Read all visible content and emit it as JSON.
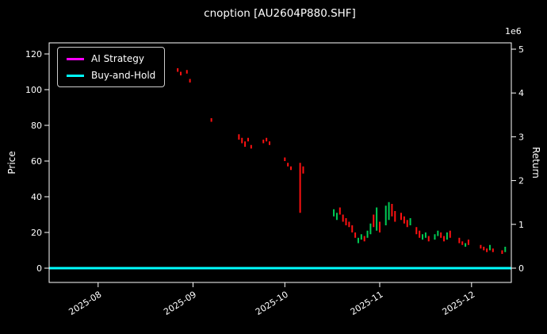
{
  "chart_data": {
    "type": "candlestick",
    "title": "cnoption [AU2604P880.SHF]",
    "background_color": "#000000",
    "left_axis": {
      "label": "Price",
      "ticks": [
        0,
        20,
        40,
        60,
        80,
        100,
        120
      ],
      "lim": [
        -8,
        126
      ]
    },
    "right_axis": {
      "label": "Return",
      "ticks": [
        0,
        1,
        2,
        3,
        4,
        5
      ],
      "scale": "1e6",
      "lim": [
        -0.35,
        5.15
      ]
    },
    "x_axis": {
      "day0": "2025-07-16",
      "max_day": 151,
      "ticks": [
        {
          "label": "2025-08",
          "day": 16
        },
        {
          "label": "2025-09",
          "day": 47
        },
        {
          "label": "2025-10",
          "day": 77
        },
        {
          "label": "2025-11",
          "day": 108
        },
        {
          "label": "2025-12",
          "day": 138
        }
      ]
    },
    "lines": [
      {
        "name": "AI Strategy",
        "color": "#ff00ff",
        "value": 0,
        "axis": "return"
      },
      {
        "name": "Buy-and-Hold",
        "color": "#00ffff",
        "value": 0,
        "axis": "return"
      }
    ],
    "bars": {
      "up_color": "#00cc55",
      "down_color": "#ff1111",
      "note": "points are [day, price_low, price_high, direction u=up/green d=down/red]",
      "points": [
        [
          42,
          110,
          112,
          "d"
        ],
        [
          43,
          108,
          110,
          "d"
        ],
        [
          45,
          109,
          111,
          "d"
        ],
        [
          46,
          104,
          106,
          "d"
        ],
        [
          53,
          82,
          84,
          "d"
        ],
        [
          62,
          72,
          75,
          "d"
        ],
        [
          63,
          70,
          73,
          "d"
        ],
        [
          64,
          68,
          71,
          "d"
        ],
        [
          65,
          71,
          73,
          "d"
        ],
        [
          66,
          67,
          69,
          "d"
        ],
        [
          70,
          70,
          72,
          "d"
        ],
        [
          71,
          71,
          73,
          "d"
        ],
        [
          72,
          69,
          71,
          "d"
        ],
        [
          77,
          60,
          62,
          "d"
        ],
        [
          78,
          57,
          59,
          "d"
        ],
        [
          79,
          55,
          57,
          "d"
        ],
        [
          82,
          31,
          59,
          "d"
        ],
        [
          83,
          53,
          57,
          "d"
        ],
        [
          93,
          29,
          33,
          "u"
        ],
        [
          94,
          27,
          31,
          "u"
        ],
        [
          95,
          30,
          34,
          "d"
        ],
        [
          96,
          26,
          30,
          "d"
        ],
        [
          97,
          24,
          28,
          "d"
        ],
        [
          98,
          23,
          26,
          "d"
        ],
        [
          99,
          20,
          24,
          "d"
        ],
        [
          100,
          17,
          20,
          "d"
        ],
        [
          101,
          14,
          17,
          "u"
        ],
        [
          102,
          16,
          19,
          "u"
        ],
        [
          103,
          15,
          18,
          "d"
        ],
        [
          104,
          17,
          21,
          "u"
        ],
        [
          105,
          19,
          25,
          "u"
        ],
        [
          106,
          23,
          30,
          "d"
        ],
        [
          107,
          21,
          34,
          "u"
        ],
        [
          108,
          20,
          26,
          "d"
        ],
        [
          110,
          24,
          35,
          "u"
        ],
        [
          111,
          27,
          37,
          "u"
        ],
        [
          112,
          29,
          36,
          "d"
        ],
        [
          113,
          26,
          32,
          "d"
        ],
        [
          115,
          27,
          31,
          "d"
        ],
        [
          116,
          25,
          29,
          "d"
        ],
        [
          117,
          23,
          27,
          "d"
        ],
        [
          118,
          24,
          28,
          "u"
        ],
        [
          120,
          19,
          23,
          "d"
        ],
        [
          121,
          17,
          21,
          "d"
        ],
        [
          122,
          16,
          19,
          "u"
        ],
        [
          123,
          17,
          20,
          "u"
        ],
        [
          124,
          15,
          18,
          "d"
        ],
        [
          126,
          16,
          19,
          "u"
        ],
        [
          127,
          18,
          21,
          "u"
        ],
        [
          128,
          17,
          20,
          "d"
        ],
        [
          129,
          15,
          18,
          "d"
        ],
        [
          130,
          16,
          20,
          "u"
        ],
        [
          131,
          17,
          21,
          "d"
        ],
        [
          134,
          14,
          17,
          "d"
        ],
        [
          135,
          13,
          15,
          "d"
        ],
        [
          136,
          12,
          14,
          "u"
        ],
        [
          137,
          13,
          16,
          "d"
        ],
        [
          141,
          11,
          13,
          "d"
        ],
        [
          142,
          10,
          12,
          "d"
        ],
        [
          143,
          9,
          11,
          "d"
        ],
        [
          144,
          10,
          13,
          "u"
        ],
        [
          145,
          9,
          11,
          "d"
        ],
        [
          148,
          8,
          10,
          "d"
        ],
        [
          149,
          9,
          12,
          "u"
        ]
      ]
    }
  }
}
